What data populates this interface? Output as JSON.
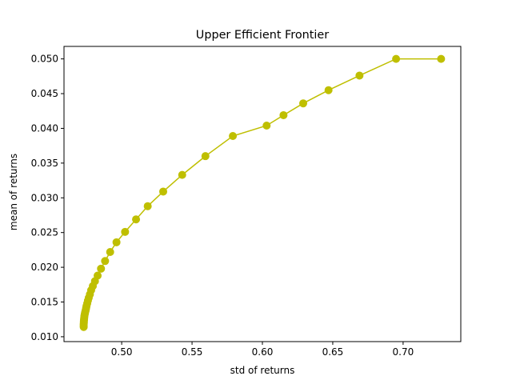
{
  "chart_data": {
    "type": "line",
    "title": "Upper Efficient Frontier",
    "xlabel": "std of returns",
    "ylabel": "mean of returns",
    "xlim": [
      0.459,
      0.741
    ],
    "ylim": [
      0.0093,
      0.0518
    ],
    "xticks": [
      0.5,
      0.55,
      0.6,
      0.65,
      0.7
    ],
    "xtick_labels": [
      "0.50",
      "0.55",
      "0.60",
      "0.65",
      "0.70"
    ],
    "yticks": [
      0.01,
      0.015,
      0.02,
      0.025,
      0.03,
      0.035,
      0.04,
      0.045,
      0.05
    ],
    "ytick_labels": [
      "0.010",
      "0.015",
      "0.020",
      "0.025",
      "0.030",
      "0.035",
      "0.040",
      "0.045",
      "0.050"
    ],
    "grid": false,
    "series": [
      {
        "color": "#bfbf00",
        "marker": "circle",
        "x": [
          0.473,
          0.473,
          0.473,
          0.4731,
          0.4731,
          0.4732,
          0.4733,
          0.4734,
          0.4735,
          0.4737,
          0.4739,
          0.4741,
          0.4744,
          0.4747,
          0.475,
          0.4755,
          0.476,
          0.4766,
          0.4774,
          0.4783,
          0.4795,
          0.481,
          0.4829,
          0.4853,
          0.4882,
          0.4918,
          0.4963,
          0.5024,
          0.5102,
          0.5185,
          0.5295,
          0.543,
          0.5595,
          0.579,
          0.603,
          0.615,
          0.629,
          0.647,
          0.669,
          0.695,
          0.727
        ],
        "y": [
          0.0114,
          0.0116,
          0.0118,
          0.012,
          0.0122,
          0.0124,
          0.0126,
          0.0128,
          0.013,
          0.0132,
          0.0134,
          0.0136,
          0.0138,
          0.0141,
          0.0144,
          0.0148,
          0.0152,
          0.0156,
          0.0161,
          0.0167,
          0.0173,
          0.018,
          0.0188,
          0.0198,
          0.0209,
          0.0222,
          0.0236,
          0.0251,
          0.0269,
          0.0288,
          0.0309,
          0.0333,
          0.036,
          0.0389,
          0.0404,
          0.0419,
          0.0436,
          0.0455,
          0.0476,
          0.05,
          0.05
        ]
      }
    ]
  }
}
